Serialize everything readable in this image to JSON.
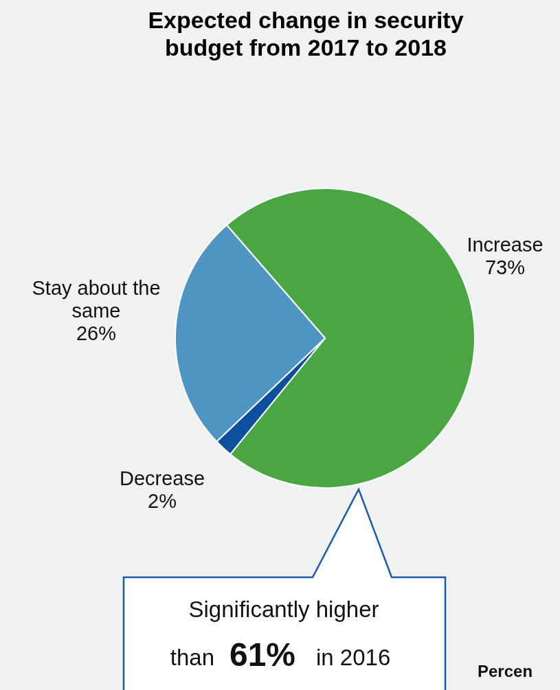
{
  "chart_data": {
    "type": "pie",
    "title": "Expected change in security budget from 2017 to 2018",
    "categories": [
      "Increase",
      "Decrease",
      "Stay about the same"
    ],
    "values": [
      73,
      2,
      26
    ],
    "colors": [
      "#4aa543",
      "#0b4f9e",
      "#4f95c4"
    ],
    "value_labels": [
      "73%",
      "2%",
      "26%"
    ],
    "annotations": [
      "Significantly higher than 61% in 2016",
      "Percen"
    ]
  }
}
